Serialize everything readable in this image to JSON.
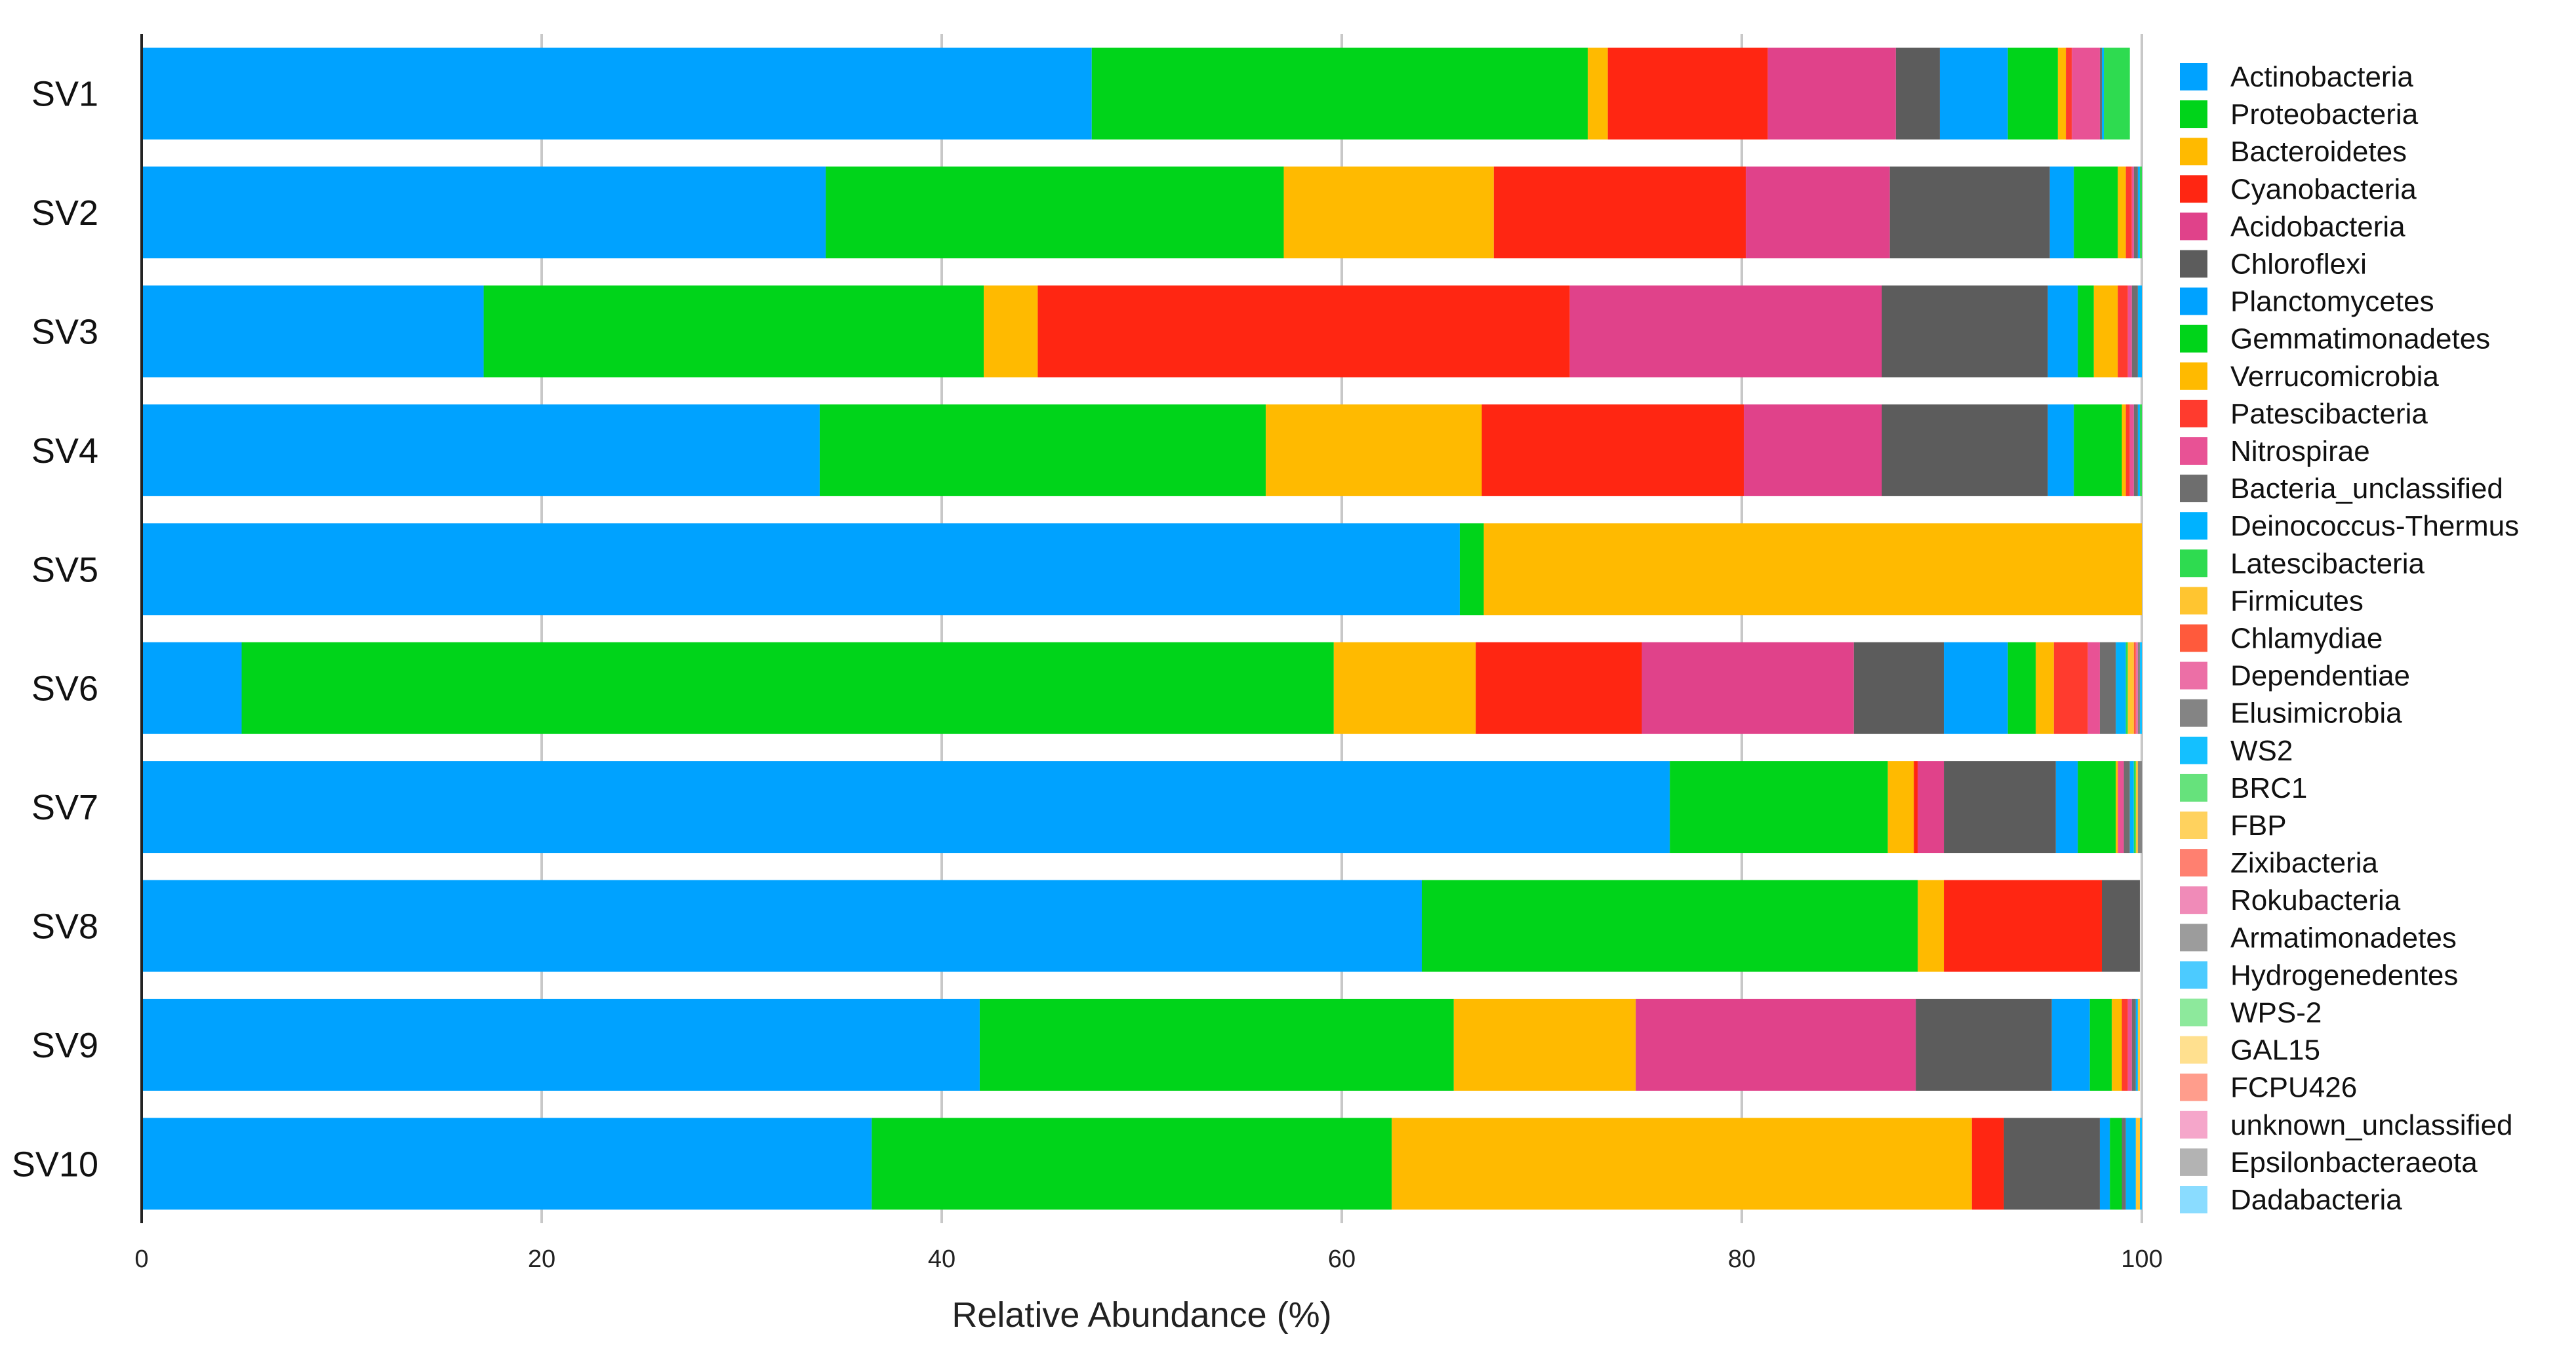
{
  "chart_data": {
    "type": "bar",
    "orientation": "horizontal",
    "stacked": true,
    "title": "",
    "xlabel": "Relative Abundance (%)",
    "ylabel": "",
    "xlim": [
      0,
      100
    ],
    "xticks": [
      "0",
      "20",
      "40",
      "60",
      "80",
      "100"
    ],
    "grid": true,
    "legend_position": "right",
    "categories": [
      "SV1",
      "SV2",
      "SV3",
      "SV4",
      "SV5",
      "SV6",
      "SV7",
      "SV8",
      "SV9",
      "SV10"
    ],
    "series": [
      {
        "name": "Actinobacteria",
        "color": "#00A2FF",
        "values": [
          47.5,
          34.2,
          17.1,
          33.9,
          65.9,
          5.0,
          76.4,
          64.0,
          41.9,
          36.5
        ]
      },
      {
        "name": "Proteobacteria",
        "color": "#00D41A",
        "values": [
          24.8,
          22.9,
          25.0,
          22.3,
          1.2,
          54.6,
          10.9,
          24.8,
          23.7,
          26.0
        ]
      },
      {
        "name": "Bacteroidetes",
        "color": "#FFBA00",
        "values": [
          1.0,
          10.5,
          2.7,
          10.8,
          32.9,
          7.1,
          1.3,
          1.3,
          9.1,
          29.0
        ]
      },
      {
        "name": "Cyanobacteria",
        "color": "#FF2612",
        "values": [
          8.0,
          12.6,
          26.6,
          13.1,
          0,
          8.3,
          0.2,
          7.9,
          0,
          1.6
        ]
      },
      {
        "name": "Acidobacteria",
        "color": "#E0428A",
        "values": [
          6.4,
          7.2,
          15.6,
          6.9,
          0,
          10.6,
          1.3,
          0,
          14.0,
          0
        ]
      },
      {
        "name": "Chloroflexi",
        "color": "#5C5C5C",
        "values": [
          2.2,
          8.0,
          8.3,
          8.3,
          0,
          4.5,
          5.6,
          1.9,
          6.8,
          4.8
        ]
      },
      {
        "name": "Planctomycetes",
        "color": "#00A2FF",
        "values": [
          3.4,
          1.2,
          1.5,
          1.3,
          0,
          3.2,
          1.1,
          0,
          1.9,
          0.5
        ]
      },
      {
        "name": "Gemmatimonadetes",
        "color": "#00D41A",
        "values": [
          2.5,
          2.2,
          0.8,
          2.4,
          0,
          1.4,
          1.9,
          0,
          1.1,
          0.6
        ]
      },
      {
        "name": "Verrucomicrobia",
        "color": "#FFBA00",
        "values": [
          0.4,
          0.4,
          1.2,
          0.2,
          0,
          0.9,
          0.1,
          0,
          0.5,
          0
        ]
      },
      {
        "name": "Patescibacteria",
        "color": "#FF3B2E",
        "values": [
          0.3,
          0.3,
          0.5,
          0.2,
          0,
          1.7,
          0,
          0,
          0.3,
          0
        ]
      },
      {
        "name": "Nitrospirae",
        "color": "#E85295",
        "values": [
          1.4,
          0.1,
          0.2,
          0.2,
          0,
          0.6,
          0.3,
          0,
          0.2,
          0
        ]
      },
      {
        "name": "Bacteria_unclassified",
        "color": "#6E6E6E",
        "values": [
          0.1,
          0.2,
          0.3,
          0.2,
          0,
          0.8,
          0.3,
          0,
          0.2,
          0.2
        ]
      },
      {
        "name": "Deinococcus-Thermus",
        "color": "#00B2FF",
        "values": [
          0.1,
          0.1,
          0.2,
          0.1,
          0,
          0.5,
          0.2,
          0,
          0.1,
          0.5
        ]
      },
      {
        "name": "Latescibacteria",
        "color": "#2EDB50",
        "values": [
          1.3,
          0.1,
          0,
          0.1,
          0,
          0.1,
          0.1,
          0,
          0,
          0
        ]
      },
      {
        "name": "Firmicutes",
        "color": "#FFC530",
        "values": [
          0,
          0,
          0,
          0,
          0,
          0.3,
          0.1,
          0,
          0.1,
          0.2
        ]
      },
      {
        "name": "Chlamydiae",
        "color": "#FF5A3C",
        "values": [
          0,
          0,
          0,
          0,
          0,
          0.1,
          0,
          0,
          0,
          0
        ]
      },
      {
        "name": "Dependentiae",
        "color": "#EC6FA6",
        "values": [
          0,
          0,
          0,
          0,
          0,
          0.1,
          0,
          0,
          0,
          0
        ]
      },
      {
        "name": "Elusimicrobia",
        "color": "#848484",
        "values": [
          0,
          0,
          0,
          0,
          0,
          0.1,
          0.2,
          0,
          0,
          0
        ]
      },
      {
        "name": "WS2",
        "color": "#14C0FF",
        "values": [
          0,
          0,
          0,
          0,
          0,
          0.1,
          0.1,
          0,
          0,
          0.1
        ]
      },
      {
        "name": "BRC1",
        "color": "#66E27C",
        "values": [
          0,
          0,
          0,
          0,
          0,
          0,
          0,
          0,
          0,
          0
        ]
      },
      {
        "name": "FBP",
        "color": "#FFD25E",
        "values": [
          0,
          0,
          0,
          0,
          0,
          0,
          0,
          0,
          0,
          0
        ]
      },
      {
        "name": "Zixibacteria",
        "color": "#FF8070",
        "values": [
          0,
          0,
          0,
          0,
          0,
          0,
          0,
          0,
          0,
          0
        ]
      },
      {
        "name": "Rokubacteria",
        "color": "#F08BB8",
        "values": [
          0,
          0,
          0,
          0,
          0,
          0,
          0,
          0,
          0,
          0
        ]
      },
      {
        "name": "Armatimonadetes",
        "color": "#9C9C9C",
        "values": [
          0,
          0,
          0,
          0,
          0,
          0,
          0,
          0,
          0,
          0
        ]
      },
      {
        "name": "Hydrogenedentes",
        "color": "#4CCBFF",
        "values": [
          0,
          0,
          0,
          0,
          0,
          0,
          0,
          0,
          0,
          0
        ]
      },
      {
        "name": "WPS-2",
        "color": "#8DE99C",
        "values": [
          0,
          0,
          0,
          0,
          0,
          0,
          0,
          0,
          0,
          0
        ]
      },
      {
        "name": "GAL15",
        "color": "#FFE08F",
        "values": [
          0,
          0,
          0,
          0,
          0,
          0,
          0,
          0,
          0,
          0
        ]
      },
      {
        "name": "FCPU426",
        "color": "#FF9D8C",
        "values": [
          0,
          0,
          0,
          0,
          0,
          0,
          0,
          0,
          0,
          0
        ]
      },
      {
        "name": "unknown_unclassified",
        "color": "#F5A6CA",
        "values": [
          0,
          0,
          0,
          0,
          0,
          0,
          0,
          0,
          0,
          0
        ]
      },
      {
        "name": "Epsilonbacteraeota",
        "color": "#B3B3B3",
        "values": [
          0,
          0,
          0,
          0,
          0,
          0,
          0,
          0,
          0,
          0
        ]
      },
      {
        "name": "Dadabacteria",
        "color": "#8ADCFF",
        "values": [
          0,
          0,
          0,
          0,
          0,
          0,
          0,
          0,
          0,
          0
        ]
      }
    ]
  }
}
